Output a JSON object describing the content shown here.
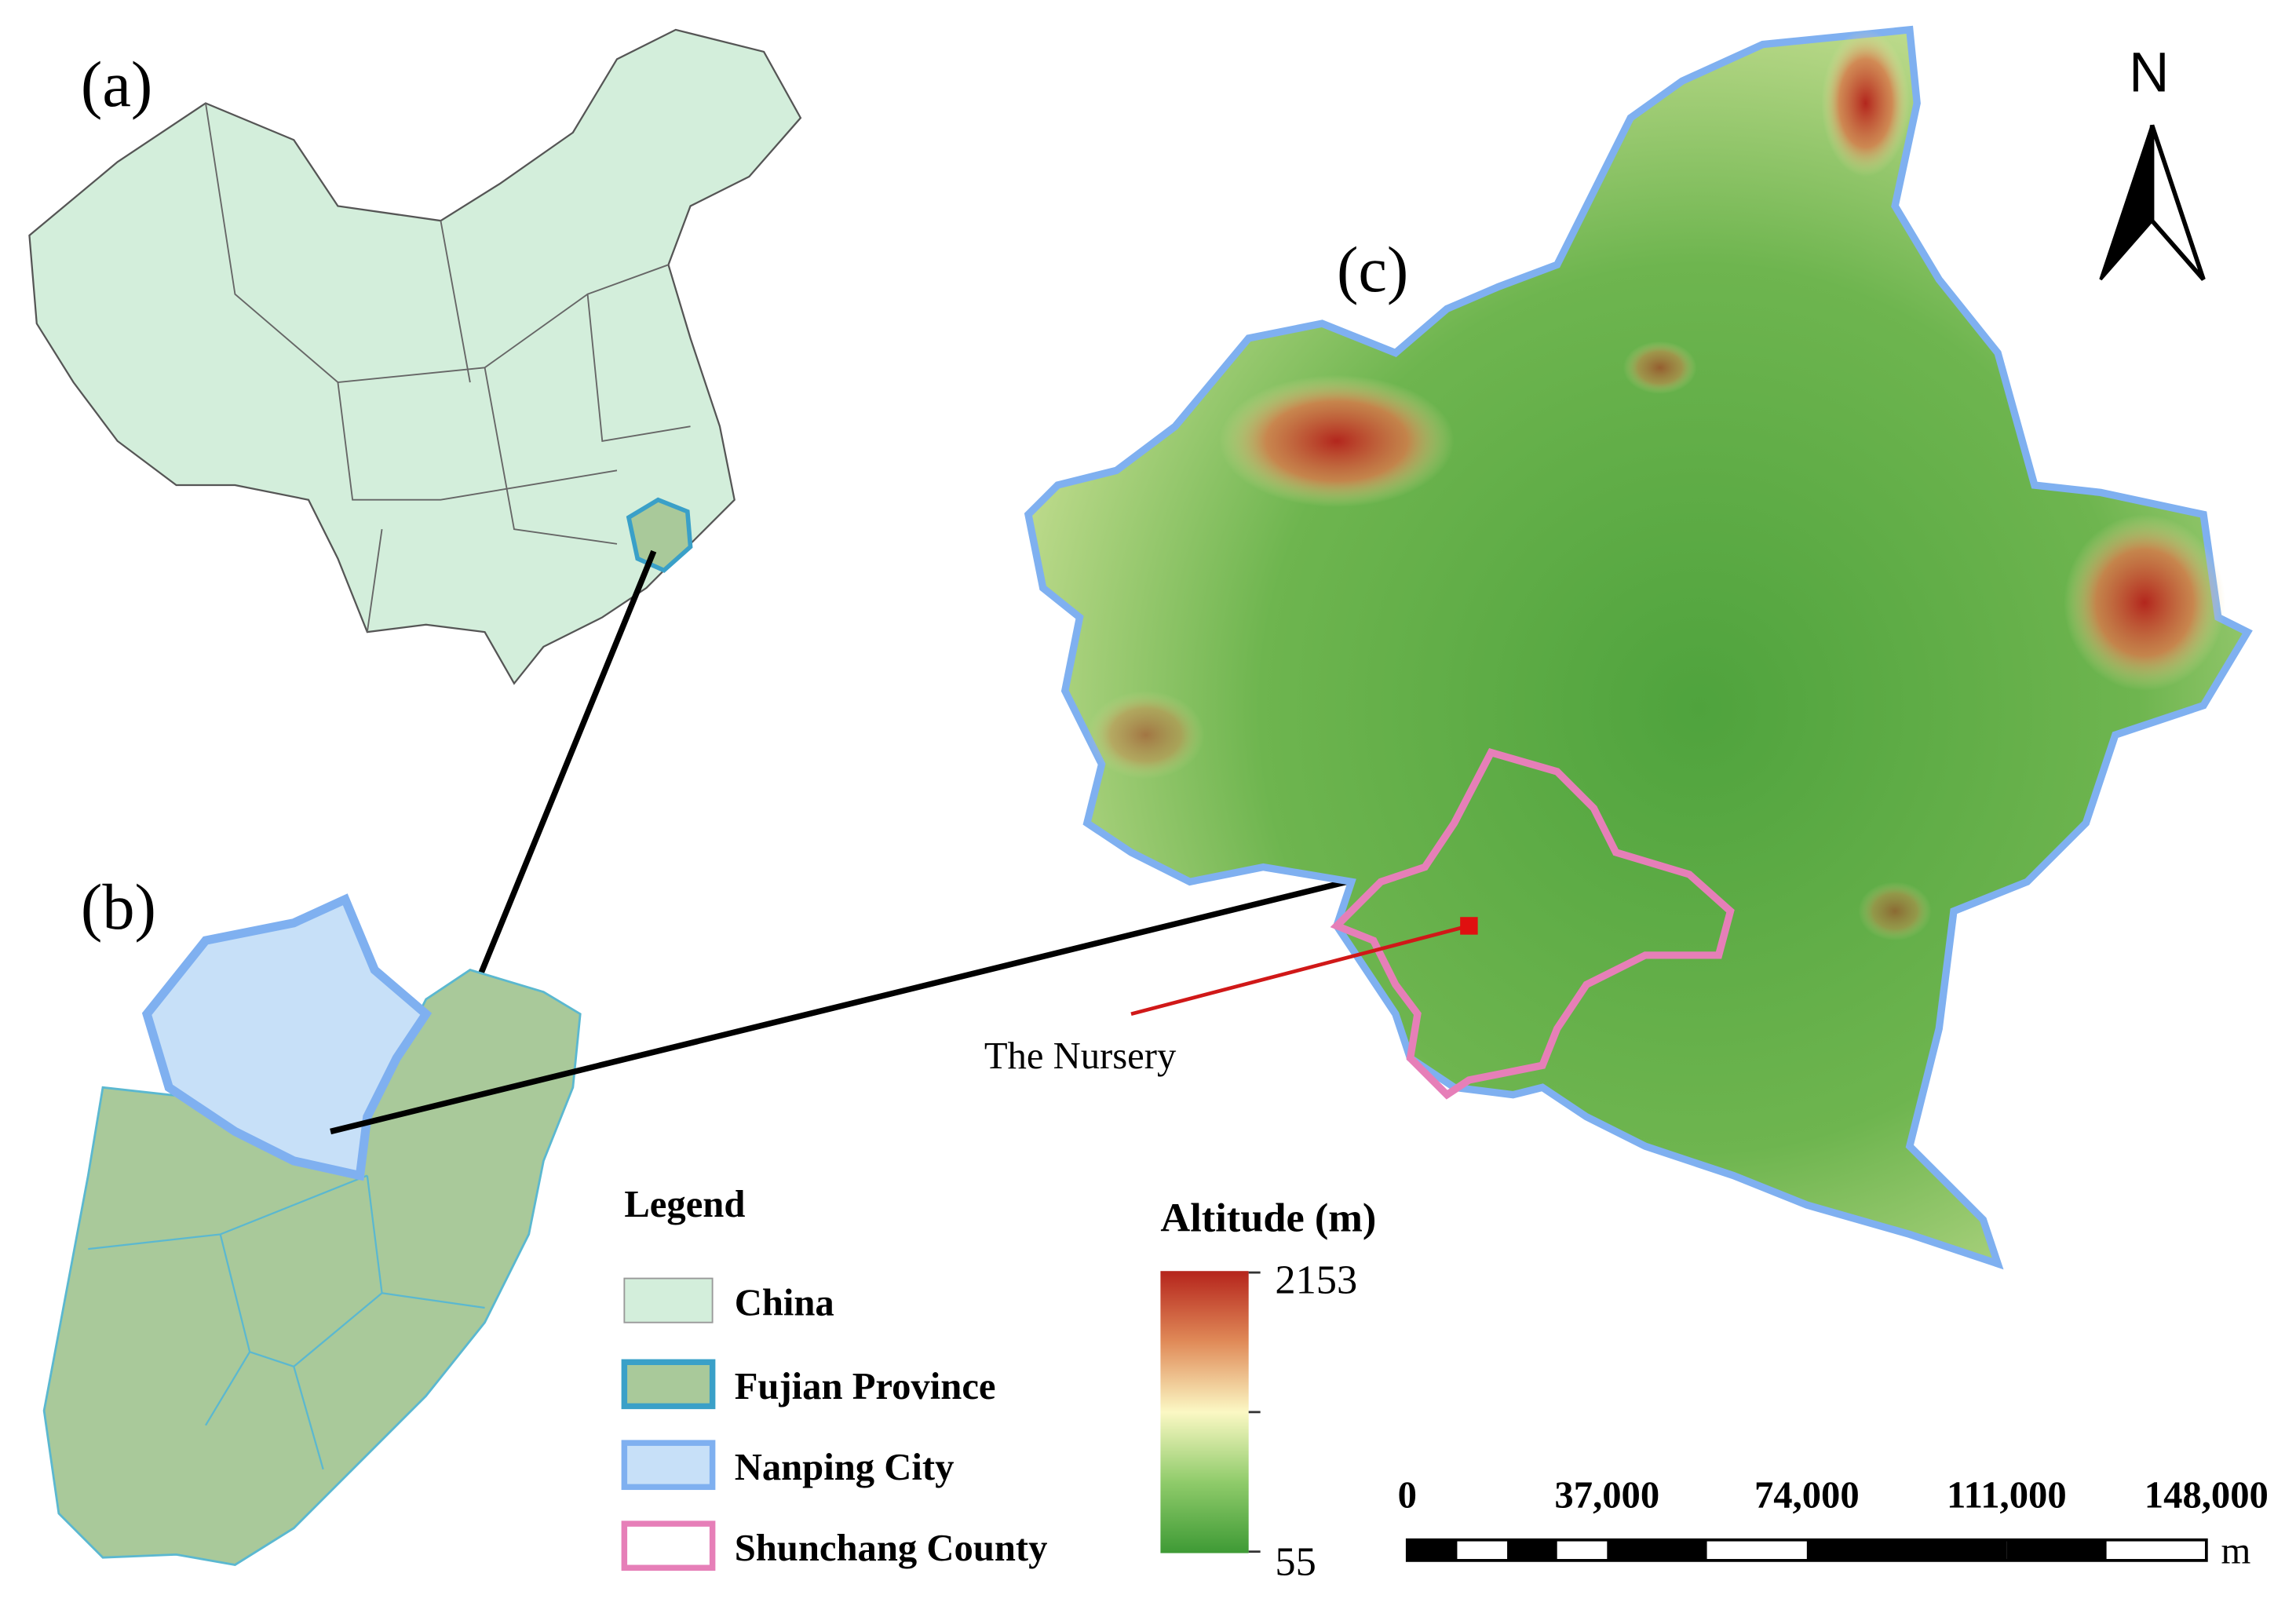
{
  "panels": {
    "a": "(a)",
    "b": "(b)",
    "c": "(c)"
  },
  "north": "N",
  "annotation": "The Nursery",
  "legend": {
    "title": "Legend",
    "items": [
      "China",
      "Fujian Province",
      "Nanping City",
      "Shunchang County"
    ]
  },
  "altitude": {
    "title": "Altitude (m)",
    "max": 2153,
    "min": 55
  },
  "scale_bar": {
    "labels": [
      "0",
      "37,000",
      "74,000",
      "111,000",
      "148,000"
    ],
    "unit": "m"
  }
}
